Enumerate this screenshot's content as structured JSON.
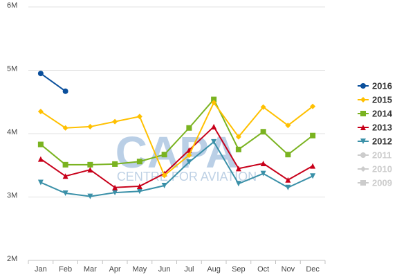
{
  "chart_data": {
    "type": "line",
    "watermark": {
      "big": "CAPA",
      "small": "CENTRE FOR AVIATION"
    },
    "categories": [
      "Jan",
      "Feb",
      "Mar",
      "Apr",
      "May",
      "Jun",
      "Jul",
      "Aug",
      "Sep",
      "Oct",
      "Nov",
      "Dec"
    ],
    "ylim": [
      2,
      6
    ],
    "yticks": [
      {
        "value": 2,
        "label": "2M"
      },
      {
        "value": 3,
        "label": "3M"
      },
      {
        "value": 4,
        "label": "4M"
      },
      {
        "value": 5,
        "label": "5M"
      },
      {
        "value": 6,
        "label": "6M"
      }
    ],
    "grid": true,
    "legend": "right",
    "series": [
      {
        "name": "2016",
        "color": "#0a4f9c",
        "marker": "circle",
        "visible": true,
        "values": [
          4.95,
          4.67,
          null,
          null,
          null,
          null,
          null,
          null,
          null,
          null,
          null,
          null
        ]
      },
      {
        "name": "2015",
        "color": "#ffc000",
        "marker": "diamond",
        "visible": true,
        "values": [
          4.35,
          4.09,
          4.11,
          4.19,
          4.27,
          3.34,
          3.66,
          4.49,
          3.95,
          4.42,
          4.13,
          4.43
        ]
      },
      {
        "name": "2014",
        "color": "#7ab320",
        "marker": "square",
        "visible": true,
        "values": [
          3.83,
          3.51,
          3.51,
          3.52,
          3.56,
          3.67,
          4.09,
          4.54,
          3.75,
          4.03,
          3.67,
          3.97
        ]
      },
      {
        "name": "2013",
        "color": "#c8001a",
        "marker": "triangle",
        "visible": true,
        "values": [
          3.6,
          3.33,
          3.43,
          3.15,
          3.17,
          3.37,
          3.74,
          4.11,
          3.45,
          3.53,
          3.27,
          3.49
        ]
      },
      {
        "name": "2012",
        "color": "#3a90a8",
        "marker": "triangle-down",
        "visible": true,
        "values": [
          3.23,
          3.06,
          3.01,
          3.07,
          3.09,
          3.18,
          3.55,
          3.87,
          3.21,
          3.37,
          3.15,
          3.33
        ]
      },
      {
        "name": "2011",
        "color": "#cccccc",
        "marker": "circle",
        "visible": false,
        "values": [
          null,
          null,
          null,
          null,
          null,
          null,
          null,
          null,
          null,
          null,
          null,
          null
        ]
      },
      {
        "name": "2010",
        "color": "#cccccc",
        "marker": "diamond",
        "visible": false,
        "values": [
          null,
          null,
          null,
          null,
          null,
          null,
          null,
          null,
          null,
          null,
          null,
          null
        ]
      },
      {
        "name": "2009",
        "color": "#cccccc",
        "marker": "square",
        "visible": false,
        "values": [
          null,
          null,
          null,
          null,
          null,
          null,
          null,
          null,
          null,
          null,
          null,
          null
        ]
      }
    ]
  }
}
